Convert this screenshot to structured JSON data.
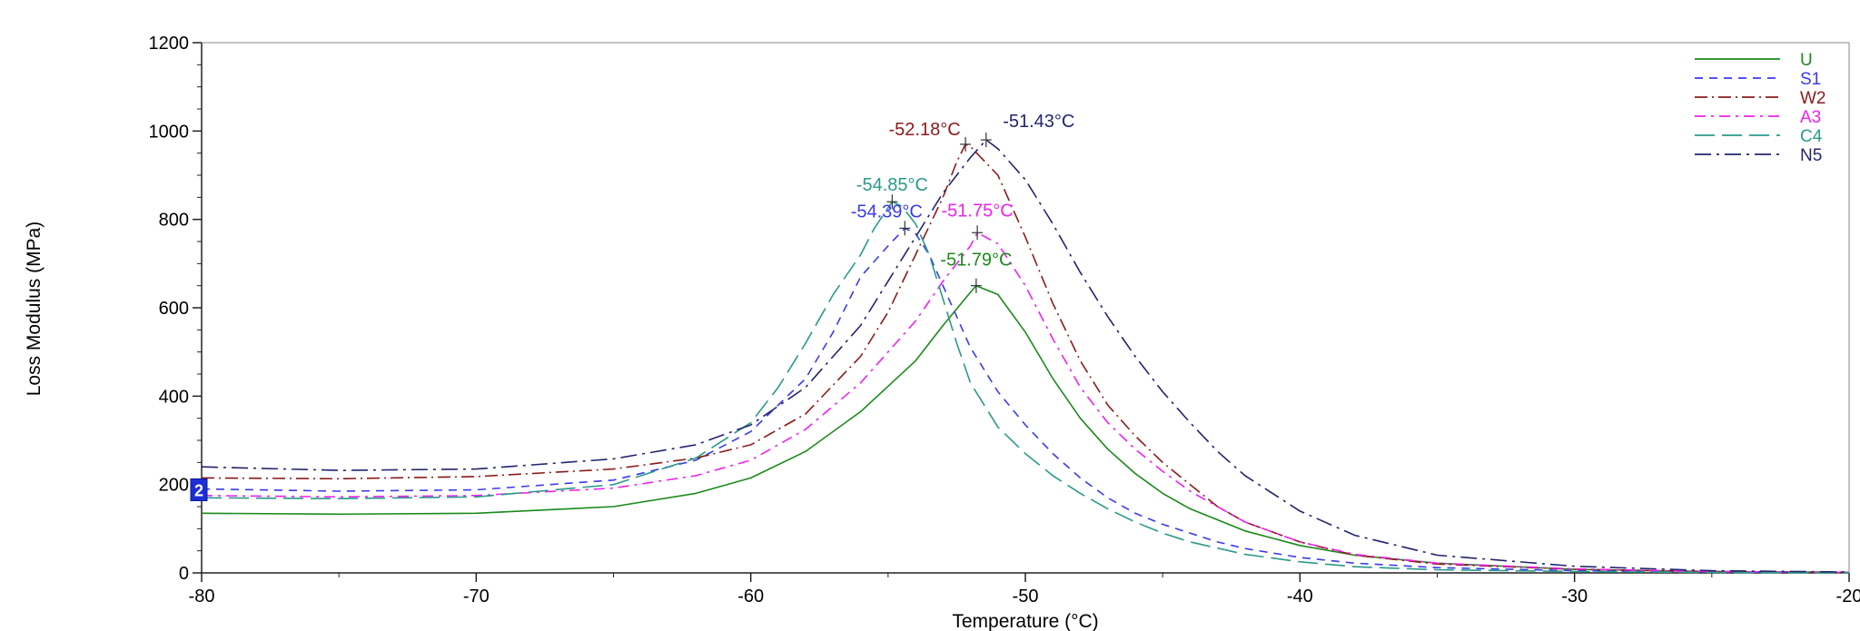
{
  "chart_data": {
    "type": "line",
    "title": "",
    "xlabel": "Temperature (°C)",
    "ylabel": "Loss Modulus (MPa)",
    "xlim": [
      -80,
      -20
    ],
    "ylim": [
      0,
      1200
    ],
    "x_ticks": [
      -80,
      -70,
      -60,
      -50,
      -40,
      -30,
      -20
    ],
    "x_tick_labels": [
      "-80",
      "-70",
      "-60",
      "-50",
      "-40",
      "-30",
      "-20"
    ],
    "y_ticks": [
      0,
      200,
      400,
      600,
      800,
      1000,
      1200
    ],
    "y_tick_labels": [
      "0",
      "200",
      "400",
      "600",
      "800",
      "1000",
      "1200"
    ],
    "grid": false,
    "legend_position": "top-right",
    "marker_badge": "2",
    "series": [
      {
        "name": "U",
        "color": "#1a8a1a",
        "dash": "solid",
        "x": [
          -80,
          -75,
          -70,
          -65,
          -62,
          -60,
          -58,
          -56,
          -54,
          -53,
          -52,
          -51.79,
          -51,
          -50,
          -49,
          -48,
          -47,
          -46,
          -45,
          -44,
          -42,
          -40,
          -38,
          -35,
          -30,
          -25,
          -20
        ],
        "y": [
          135,
          133,
          135,
          150,
          180,
          215,
          275,
          365,
          480,
          560,
          635,
          650,
          630,
          545,
          440,
          350,
          280,
          225,
          180,
          145,
          95,
          62,
          40,
          22,
          8,
          3,
          1
        ],
        "peak": {
          "x": -51.79,
          "y": 650,
          "label": "-51.79°C"
        }
      },
      {
        "name": "S1",
        "color": "#3a3af0",
        "dash": "9,7",
        "x": [
          -80,
          -75,
          -70,
          -65,
          -62,
          -60,
          -58,
          -57,
          -56,
          -55,
          -54.39,
          -54,
          -53.5,
          -53,
          -52,
          -51,
          -50,
          -49,
          -48,
          -47,
          -46,
          -45,
          -44,
          -43,
          -42,
          -40,
          -38,
          -35,
          -30,
          -25,
          -20
        ],
        "y": [
          190,
          185,
          188,
          210,
          255,
          320,
          440,
          545,
          670,
          740,
          780,
          768,
          720,
          650,
          510,
          410,
          335,
          270,
          215,
          170,
          135,
          110,
          90,
          70,
          55,
          35,
          22,
          12,
          5,
          2,
          1
        ],
        "peak": {
          "x": -54.39,
          "y": 780,
          "label": "-54.39°C"
        }
      },
      {
        "name": "W2",
        "color": "#8b1a1a",
        "dash": "14,5,2,5",
        "x": [
          -80,
          -75,
          -70,
          -65,
          -62,
          -60,
          -58,
          -56,
          -55,
          -54,
          -53,
          -52.5,
          -52.18,
          -52,
          -51,
          -50,
          -49,
          -48,
          -47,
          -46,
          -45,
          -44,
          -43,
          -42,
          -40,
          -38,
          -35,
          -30,
          -25,
          -20
        ],
        "y": [
          215,
          213,
          218,
          235,
          260,
          290,
          360,
          490,
          590,
          720,
          850,
          930,
          970,
          965,
          900,
          760,
          610,
          480,
          380,
          310,
          250,
          200,
          150,
          115,
          70,
          40,
          20,
          8,
          3,
          1
        ],
        "peak": {
          "x": -52.18,
          "y": 970,
          "label": "-52.18°C"
        }
      },
      {
        "name": "A3",
        "color": "#f020f0",
        "dash": "12,6,3,6",
        "x": [
          -80,
          -75,
          -70,
          -65,
          -62,
          -60,
          -58,
          -56,
          -54,
          -53,
          -52,
          -51.75,
          -51,
          -50,
          -49,
          -48,
          -47,
          -46,
          -45,
          -44,
          -43,
          -42,
          -40,
          -38,
          -35,
          -30,
          -25,
          -20
        ],
        "y": [
          175,
          172,
          175,
          192,
          220,
          255,
          325,
          430,
          570,
          660,
          740,
          770,
          745,
          650,
          530,
          420,
          340,
          280,
          230,
          185,
          150,
          115,
          70,
          42,
          22,
          9,
          3,
          1
        ],
        "peak": {
          "x": -51.75,
          "y": 770,
          "label": "-51.75°C"
        }
      },
      {
        "name": "C4",
        "color": "#2a9a8a",
        "dash": "22,8",
        "x": [
          -80,
          -75,
          -70,
          -65,
          -62,
          -60,
          -59,
          -58,
          -57,
          -56,
          -55.5,
          -54.85,
          -54.5,
          -54,
          -53.5,
          -53,
          -52.5,
          -52,
          -51,
          -50,
          -49,
          -48,
          -47,
          -46,
          -45,
          -44,
          -42,
          -40,
          -38,
          -35,
          -30,
          -25,
          -20
        ],
        "y": [
          170,
          168,
          172,
          200,
          260,
          340,
          420,
          520,
          630,
          720,
          780,
          840,
          830,
          790,
          720,
          620,
          520,
          430,
          330,
          270,
          220,
          180,
          145,
          115,
          90,
          70,
          42,
          25,
          14,
          7,
          3,
          1,
          0
        ],
        "peak": {
          "x": -54.85,
          "y": 840,
          "label": "-54.85°C"
        }
      },
      {
        "name": "N5",
        "color": "#24246e",
        "dash": "18,6,3,6",
        "x": [
          -80,
          -75,
          -70,
          -65,
          -62,
          -60,
          -58,
          -56,
          -55,
          -54,
          -53,
          -52,
          -51.43,
          -51,
          -50,
          -49,
          -48,
          -47,
          -46,
          -45,
          -44,
          -43,
          -42,
          -40,
          -38,
          -35,
          -30,
          -25,
          -20
        ],
        "y": [
          240,
          232,
          235,
          258,
          290,
          335,
          420,
          560,
          660,
          760,
          860,
          940,
          980,
          960,
          890,
          790,
          680,
          580,
          490,
          410,
          340,
          275,
          220,
          140,
          85,
          40,
          15,
          5,
          2
        ],
        "peak": {
          "x": -51.43,
          "y": 980,
          "label": "-51.43°C"
        }
      }
    ]
  }
}
